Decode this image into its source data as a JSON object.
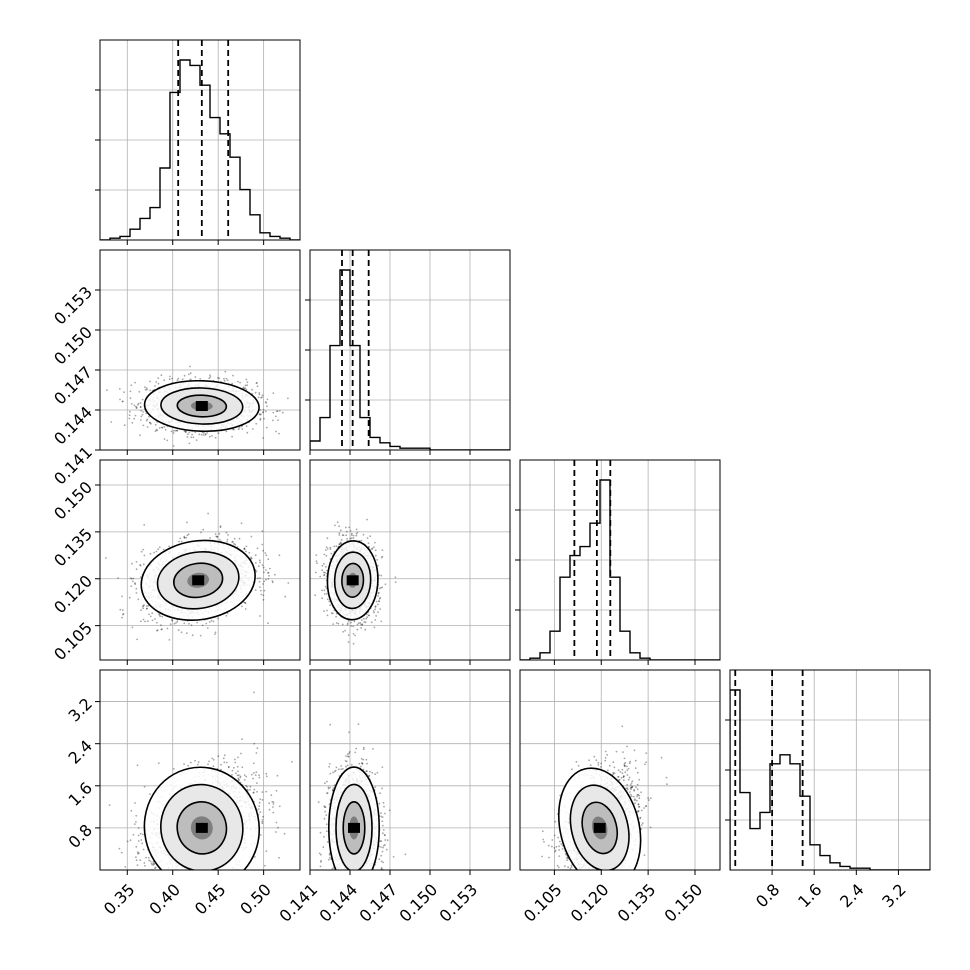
{
  "chart_data": {
    "type": "corner",
    "n_params": 4,
    "params": [
      {
        "range": [
          0.32,
          0.54
        ],
        "ticks": [
          0.35,
          0.4,
          0.45,
          0.5
        ],
        "tick_labels": [
          "0.35",
          "0.40",
          "0.45",
          "0.50"
        ],
        "quantiles": [
          0.406,
          0.432,
          0.461
        ],
        "hist": {
          "edges_start": 0.32,
          "bin_width": 0.011,
          "counts": [
            0,
            1,
            2,
            6,
            12,
            18,
            40,
            82,
            100,
            97,
            86,
            68,
            59,
            46,
            28,
            14,
            4,
            2,
            1,
            0
          ]
        }
      },
      {
        "range": [
          0.141,
          0.156
        ],
        "ticks": [
          0.141,
          0.144,
          0.147,
          0.15,
          0.153
        ],
        "tick_labels": [
          "0.141",
          "0.144",
          "0.147",
          "0.150",
          "0.153"
        ],
        "quantiles": [
          0.1434,
          0.1442,
          0.1454
        ],
        "hist": {
          "edges_start": 0.141,
          "bin_width": 0.00075,
          "counts": [
            5,
            18,
            58,
            100,
            58,
            18,
            7,
            4,
            2,
            1,
            1,
            1,
            0,
            0,
            0,
            0,
            0,
            0,
            0,
            0
          ]
        }
      },
      {
        "range": [
          0.094,
          0.158
        ],
        "ticks": [
          0.105,
          0.12,
          0.135,
          0.15
        ],
        "tick_labels": [
          "0.105",
          "0.120",
          "0.135",
          "0.150"
        ],
        "quantiles": [
          0.1114,
          0.1186,
          0.1229
        ],
        "hist": {
          "edges_start": 0.094,
          "bin_width": 0.0032,
          "counts": [
            0,
            1,
            4,
            16,
            46,
            58,
            63,
            76,
            100,
            46,
            16,
            4,
            1,
            0,
            0,
            0,
            0,
            0,
            0,
            0
          ]
        }
      },
      {
        "range": [
          0.0,
          3.8
        ],
        "ticks": [
          0.8,
          1.6,
          2.4,
          3.2
        ],
        "tick_labels": [
          "0.8",
          "1.6",
          "2.4",
          "3.2"
        ],
        "quantiles": [
          0.1,
          0.8,
          1.38
        ],
        "hist": {
          "edges_start": 0.0,
          "bin_width": 0.19,
          "counts": [
            100,
            43,
            23,
            32,
            59,
            64,
            59,
            41,
            14,
            8,
            4,
            2,
            1,
            1,
            0,
            0,
            0,
            0,
            0,
            0
          ]
        }
      }
    ],
    "diag_tick_fractions": [
      0.25,
      0.5,
      0.75
    ],
    "pairs": [
      {
        "row": 1,
        "col": 0,
        "mean": [
          0.432,
          0.1443
        ],
        "sd": [
          0.03,
          0.0009
        ],
        "corr": -0.05
      },
      {
        "row": 2,
        "col": 0,
        "mean": [
          0.428,
          0.1195
        ],
        "sd": [
          0.03,
          0.006
        ],
        "corr": 0.25
      },
      {
        "row": 2,
        "col": 1,
        "mean": [
          0.1442,
          0.1195
        ],
        "sd": [
          0.0009,
          0.006
        ],
        "corr": -0.05
      },
      {
        "row": 3,
        "col": 0,
        "mean": [
          0.432,
          0.8
        ],
        "sd": [
          0.03,
          0.55
        ],
        "corr": 0.35
      },
      {
        "row": 3,
        "col": 1,
        "mean": [
          0.1443,
          0.8
        ],
        "sd": [
          0.0009,
          0.55
        ],
        "corr": 0.0
      },
      {
        "row": 3,
        "col": 2,
        "mean": [
          0.1195,
          0.8
        ],
        "sd": [
          0.006,
          0.55
        ],
        "corr": 0.4
      }
    ],
    "grid": true
  }
}
